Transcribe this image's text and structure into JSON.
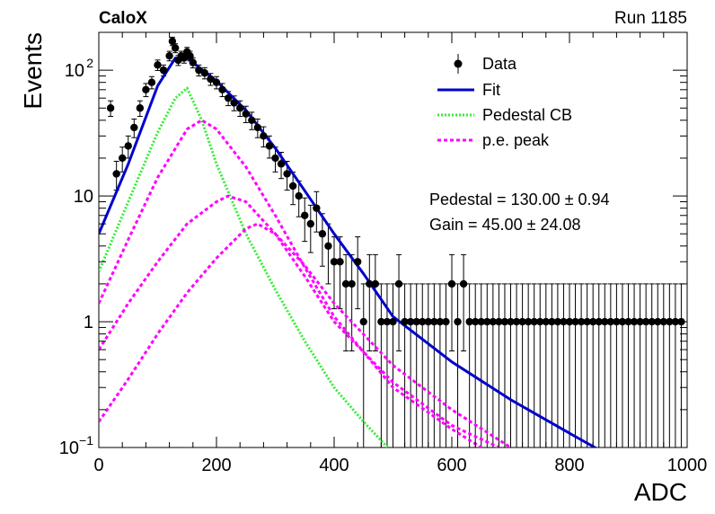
{
  "chart_data": {
    "type": "scatter",
    "title_left": "CaloX",
    "title_right": "Run 1185",
    "xlabel": "ADC",
    "ylabel": "Events",
    "xlim": [
      0,
      1000
    ],
    "ylim": [
      0.1,
      200
    ],
    "y_scale": "log",
    "x_ticks": [
      "0",
      "200",
      "400",
      "600",
      "800",
      "1000"
    ],
    "y_ticks": [
      {
        "value": 0.1,
        "base": "10",
        "exp": "−1"
      },
      {
        "value": 1,
        "base": "1",
        "exp": ""
      },
      {
        "value": 10,
        "base": "10",
        "exp": ""
      },
      {
        "value": 100,
        "base": "10",
        "exp": "2"
      }
    ],
    "legend_position": "top-right",
    "legend": [
      {
        "label": "Data",
        "style": "marker-errorbar",
        "color": "#000000"
      },
      {
        "label": "Fit",
        "style": "solid",
        "color": "#0000cc"
      },
      {
        "label": "Pedestal CB",
        "style": "dotted",
        "color": "#33ee33"
      },
      {
        "label": "p.e. peak",
        "style": "dashed",
        "color": "#ff00ff"
      }
    ],
    "annotations": [
      "Pedestal = 130.00 ± 0.94",
      "Gain = 45.00 ± 24.08"
    ],
    "series": [
      {
        "name": "Data",
        "points": [
          [
            20,
            50
          ],
          [
            30,
            15
          ],
          [
            40,
            20
          ],
          [
            50,
            25
          ],
          [
            60,
            35
          ],
          [
            70,
            50
          ],
          [
            80,
            70
          ],
          [
            90,
            80
          ],
          [
            100,
            110
          ],
          [
            110,
            100
          ],
          [
            120,
            130
          ],
          [
            125,
            170
          ],
          [
            130,
            150
          ],
          [
            135,
            120
          ],
          [
            140,
            130
          ],
          [
            145,
            125
          ],
          [
            150,
            140
          ],
          [
            155,
            130
          ],
          [
            160,
            115
          ],
          [
            170,
            100
          ],
          [
            180,
            95
          ],
          [
            190,
            85
          ],
          [
            200,
            80
          ],
          [
            210,
            70
          ],
          [
            220,
            60
          ],
          [
            230,
            55
          ],
          [
            240,
            50
          ],
          [
            250,
            45
          ],
          [
            260,
            40
          ],
          [
            270,
            35
          ],
          [
            280,
            30
          ],
          [
            290,
            25
          ],
          [
            300,
            20
          ],
          [
            310,
            18
          ],
          [
            320,
            15
          ],
          [
            330,
            12
          ],
          [
            340,
            10
          ],
          [
            350,
            7
          ],
          [
            360,
            6
          ],
          [
            370,
            8
          ],
          [
            380,
            5
          ],
          [
            390,
            4
          ],
          [
            400,
            3
          ],
          [
            410,
            3
          ],
          [
            420,
            2
          ],
          [
            430,
            2
          ],
          [
            440,
            3
          ],
          [
            450,
            1
          ],
          [
            460,
            2
          ],
          [
            470,
            2
          ],
          [
            480,
            1
          ],
          [
            490,
            1
          ],
          [
            500,
            1
          ],
          [
            510,
            2
          ],
          [
            520,
            1
          ],
          [
            530,
            1
          ],
          [
            540,
            1
          ],
          [
            550,
            1
          ],
          [
            560,
            1
          ],
          [
            570,
            1
          ],
          [
            580,
            1
          ],
          [
            590,
            1
          ],
          [
            600,
            2
          ],
          [
            610,
            1
          ],
          [
            620,
            2
          ],
          [
            630,
            1
          ],
          [
            640,
            1
          ],
          [
            650,
            1
          ],
          [
            660,
            1
          ],
          [
            670,
            1
          ],
          [
            680,
            1
          ],
          [
            690,
            1
          ],
          [
            700,
            1
          ],
          [
            710,
            1
          ],
          [
            720,
            1
          ],
          [
            730,
            1
          ],
          [
            740,
            1
          ],
          [
            750,
            1
          ],
          [
            760,
            1
          ],
          [
            770,
            1
          ],
          [
            780,
            1
          ],
          [
            790,
            1
          ],
          [
            800,
            1
          ],
          [
            810,
            1
          ],
          [
            820,
            1
          ],
          [
            830,
            1
          ],
          [
            840,
            1
          ],
          [
            850,
            1
          ],
          [
            860,
            1
          ],
          [
            870,
            1
          ],
          [
            880,
            1
          ],
          [
            890,
            1
          ],
          [
            900,
            1
          ],
          [
            910,
            1
          ],
          [
            920,
            1
          ],
          [
            930,
            1
          ],
          [
            940,
            1
          ],
          [
            950,
            1
          ],
          [
            960,
            1
          ],
          [
            970,
            1
          ],
          [
            980,
            1
          ],
          [
            990,
            1
          ]
        ]
      },
      {
        "name": "Fit",
        "points": [
          [
            0,
            5
          ],
          [
            50,
            18
          ],
          [
            100,
            75
          ],
          [
            130,
            125
          ],
          [
            150,
            125
          ],
          [
            200,
            82
          ],
          [
            250,
            48
          ],
          [
            300,
            24
          ],
          [
            350,
            11
          ],
          [
            400,
            5
          ],
          [
            450,
            2.4
          ],
          [
            500,
            1.1
          ],
          [
            600,
            0.48
          ],
          [
            700,
            0.24
          ],
          [
            800,
            0.13
          ],
          [
            870,
            0.085
          ]
        ]
      },
      {
        "name": "Pedestal CB",
        "points": [
          [
            0,
            2.5
          ],
          [
            50,
            9
          ],
          [
            100,
            32
          ],
          [
            130,
            60
          ],
          [
            150,
            72
          ],
          [
            175,
            40
          ],
          [
            200,
            18
          ],
          [
            250,
            5
          ],
          [
            300,
            1.8
          ],
          [
            350,
            0.7
          ],
          [
            400,
            0.3
          ],
          [
            450,
            0.16
          ],
          [
            500,
            0.09
          ]
        ]
      },
      {
        "name": "p.e. peak 1",
        "points": [
          [
            0,
            1.4
          ],
          [
            50,
            4.5
          ],
          [
            100,
            14
          ],
          [
            150,
            34
          ],
          [
            175,
            40
          ],
          [
            200,
            34
          ],
          [
            250,
            17
          ],
          [
            300,
            7
          ],
          [
            350,
            2.7
          ],
          [
            400,
            1.1
          ],
          [
            500,
            0.3
          ],
          [
            600,
            0.14
          ],
          [
            650,
            0.1
          ]
        ]
      },
      {
        "name": "p.e. peak 2",
        "points": [
          [
            0,
            0.6
          ],
          [
            50,
            1.4
          ],
          [
            100,
            3
          ],
          [
            150,
            6
          ],
          [
            200,
            9
          ],
          [
            220,
            10
          ],
          [
            250,
            9
          ],
          [
            300,
            5
          ],
          [
            350,
            2.3
          ],
          [
            400,
            1
          ],
          [
            500,
            0.33
          ],
          [
            600,
            0.15
          ],
          [
            680,
            0.1
          ]
        ]
      },
      {
        "name": "p.e. peak 3",
        "points": [
          [
            0,
            0.16
          ],
          [
            50,
            0.35
          ],
          [
            100,
            0.8
          ],
          [
            150,
            1.7
          ],
          [
            200,
            3.2
          ],
          [
            250,
            5.5
          ],
          [
            270,
            6
          ],
          [
            300,
            5
          ],
          [
            350,
            2.8
          ],
          [
            400,
            1.4
          ],
          [
            500,
            0.45
          ],
          [
            600,
            0.2
          ],
          [
            700,
            0.1
          ]
        ]
      }
    ]
  }
}
